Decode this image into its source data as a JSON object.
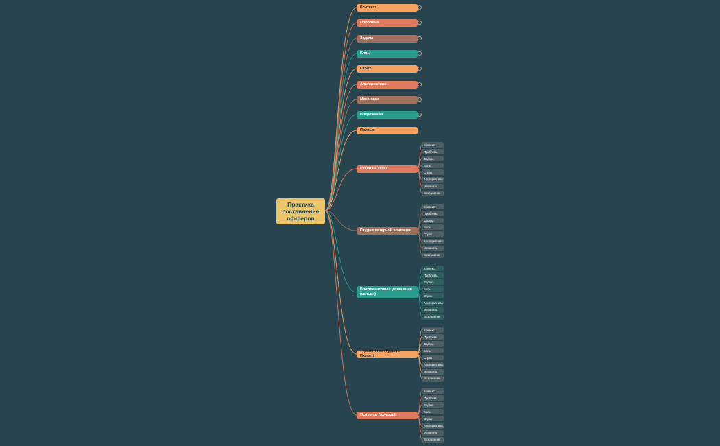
{
  "root": {
    "label": "Практика\nсоставление\nофферов",
    "color": "#e9c46a",
    "text_color": "#2c4a55"
  },
  "colors": {
    "background": "#27444f",
    "orange": "#f4a261",
    "salmon": "#e07a5f",
    "brown": "#a0705c",
    "teal": "#2a9d8f",
    "leaf": "#4b5d63",
    "leaf_teal": "#2e5e5e"
  },
  "branches": [
    {
      "label": "Контекст",
      "color": "orange",
      "collapsed": true,
      "leaves": []
    },
    {
      "label": "Проблема",
      "color": "salmon",
      "collapsed": true,
      "leaves": []
    },
    {
      "label": "Задача",
      "color": "brown",
      "collapsed": true,
      "leaves": []
    },
    {
      "label": "Боль",
      "color": "teal",
      "collapsed": true,
      "leaves": []
    },
    {
      "label": "Страх",
      "color": "orange",
      "collapsed": true,
      "leaves": []
    },
    {
      "label": "Альтернатива",
      "color": "salmon",
      "collapsed": true,
      "leaves": []
    },
    {
      "label": "Механизм",
      "color": "brown",
      "collapsed": true,
      "leaves": []
    },
    {
      "label": "Возражения",
      "color": "teal",
      "collapsed": true,
      "leaves": []
    },
    {
      "label": "Призыв",
      "color": "orange",
      "collapsed": false,
      "leaves": []
    },
    {
      "label": "Кухни на заказ",
      "color": "salmon",
      "collapsed": false,
      "leaves": [
        "Контекст",
        "Проблема",
        "Задача",
        "Боль",
        "Страх",
        "Альтернатива",
        "Механизм",
        "Возражения"
      ]
    },
    {
      "label": "Студия лазерной эпиляции",
      "color": "brown",
      "collapsed": false,
      "leaves": [
        "Контекст",
        "Проблема",
        "Задача",
        "Боль",
        "Страх",
        "Альтернатива",
        "Механизм",
        "Возражения"
      ]
    },
    {
      "label": "Бриллиантовые украшения (кольца)",
      "color": "teal",
      "collapsed": false,
      "leaves": [
        "Контекст",
        "Проблема",
        "Задача",
        "Боль",
        "Страх",
        "Альтернатива",
        "Механизм",
        "Возражения"
      ]
    },
    {
      "label": "Турагенство (Туры на Пхукет)",
      "color": "orange",
      "collapsed": false,
      "leaves": [
        "Контекст",
        "Проблема",
        "Задача",
        "Боль",
        "Страх",
        "Альтернатива",
        "Механизм",
        "Возражения"
      ]
    },
    {
      "label": "Психолог (женский)",
      "color": "salmon",
      "collapsed": false,
      "leaves": [
        "Контекст",
        "Проблема",
        "Задача",
        "Боль",
        "Страх",
        "Альтернатива",
        "Механизм",
        "Возражения"
      ]
    }
  ]
}
